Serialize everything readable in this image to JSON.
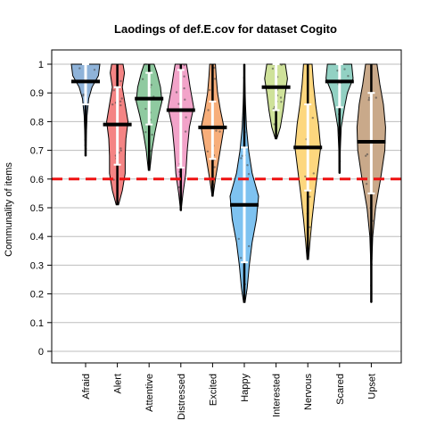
{
  "chart_data": {
    "type": "violin",
    "title": "Laodings of def.E.cov for dataset Cogito",
    "ylabel": "Communality of items",
    "xlabel": "",
    "ylim": [
      0,
      1
    ],
    "yticks": [
      0,
      0.1,
      0.2,
      0.3,
      0.4,
      0.5,
      0.6,
      0.7,
      0.8,
      0.9,
      1
    ],
    "ytick_labels": [
      "0",
      "0.1",
      "0.2",
      "0.3",
      "0.4",
      "0.5",
      "0.6",
      "0.7",
      "0.8",
      "0.9",
      "1"
    ],
    "reference_line": {
      "y": 0.6,
      "color": "#ee1111",
      "style": "dashed"
    },
    "grid": true,
    "categories": [
      "Afraid",
      "Alert",
      "Attentive",
      "Distressed",
      "Excited",
      "Happy",
      "Interested",
      "Nervous",
      "Scared",
      "Upset"
    ],
    "violins": [
      {
        "name": "Afraid",
        "color": "#8fb3d9",
        "min": 0.68,
        "max": 1.0,
        "median": 0.94,
        "q1": 0.86,
        "q3": 1.0,
        "density": [
          [
            0.68,
            0.02
          ],
          [
            0.75,
            0.05
          ],
          [
            0.82,
            0.1
          ],
          [
            0.88,
            0.22
          ],
          [
            0.92,
            0.45
          ],
          [
            0.96,
            0.9
          ],
          [
            1.0,
            1.0
          ]
        ]
      },
      {
        "name": "Alert",
        "color": "#f48484",
        "min": 0.51,
        "max": 1.0,
        "median": 0.79,
        "q1": 0.65,
        "q3": 0.92,
        "density": [
          [
            0.51,
            0.08
          ],
          [
            0.56,
            0.35
          ],
          [
            0.62,
            0.55
          ],
          [
            0.68,
            0.55
          ],
          [
            0.74,
            0.6
          ],
          [
            0.8,
            0.75
          ],
          [
            0.86,
            0.55
          ],
          [
            0.92,
            0.35
          ],
          [
            0.97,
            0.5
          ],
          [
            1.0,
            0.4
          ]
        ]
      },
      {
        "name": "Attentive",
        "color": "#8fcaa0",
        "min": 0.63,
        "max": 1.0,
        "median": 0.88,
        "q1": 0.79,
        "q3": 0.97,
        "density": [
          [
            0.63,
            0.05
          ],
          [
            0.7,
            0.2
          ],
          [
            0.76,
            0.4
          ],
          [
            0.82,
            0.65
          ],
          [
            0.87,
            0.9
          ],
          [
            0.92,
            0.8
          ],
          [
            0.97,
            0.55
          ],
          [
            1.0,
            0.35
          ]
        ]
      },
      {
        "name": "Distressed",
        "color": "#f2a3c9",
        "min": 0.49,
        "max": 1.0,
        "median": 0.84,
        "q1": 0.64,
        "q3": 0.98,
        "density": [
          [
            0.49,
            0.02
          ],
          [
            0.55,
            0.15
          ],
          [
            0.62,
            0.35
          ],
          [
            0.7,
            0.45
          ],
          [
            0.78,
            0.6
          ],
          [
            0.85,
            0.9
          ],
          [
            0.92,
            0.65
          ],
          [
            0.97,
            0.5
          ],
          [
            1.0,
            0.4
          ]
        ]
      },
      {
        "name": "Excited",
        "color": "#f7ae7a",
        "min": 0.54,
        "max": 1.0,
        "median": 0.78,
        "q1": 0.67,
        "q3": 0.87,
        "density": [
          [
            0.54,
            0.03
          ],
          [
            0.6,
            0.2
          ],
          [
            0.66,
            0.4
          ],
          [
            0.72,
            0.6
          ],
          [
            0.78,
            0.8
          ],
          [
            0.84,
            0.55
          ],
          [
            0.9,
            0.35
          ],
          [
            0.96,
            0.25
          ],
          [
            1.0,
            0.2
          ]
        ]
      },
      {
        "name": "Happy",
        "color": "#7ec2f0",
        "min": 0.17,
        "max": 1.0,
        "median": 0.51,
        "q1": 0.31,
        "q3": 0.71,
        "density": [
          [
            0.17,
            0.05
          ],
          [
            0.22,
            0.2
          ],
          [
            0.3,
            0.35
          ],
          [
            0.38,
            0.55
          ],
          [
            0.46,
            0.85
          ],
          [
            0.54,
            1.0
          ],
          [
            0.62,
            0.55
          ],
          [
            0.7,
            0.3
          ],
          [
            0.78,
            0.15
          ],
          [
            0.86,
            0.08
          ],
          [
            0.94,
            0.04
          ],
          [
            1.0,
            0.02
          ]
        ]
      },
      {
        "name": "Interested",
        "color": "#cfe29a",
        "min": 0.74,
        "max": 1.0,
        "median": 0.92,
        "q1": 0.84,
        "q3": 1.0,
        "density": [
          [
            0.74,
            0.05
          ],
          [
            0.78,
            0.3
          ],
          [
            0.84,
            0.5
          ],
          [
            0.9,
            0.65
          ],
          [
            0.95,
            0.8
          ],
          [
            1.0,
            0.65
          ]
        ]
      },
      {
        "name": "Nervous",
        "color": "#fdd77e",
        "min": 0.32,
        "max": 1.0,
        "median": 0.71,
        "q1": 0.56,
        "q3": 0.86,
        "density": [
          [
            0.32,
            0.05
          ],
          [
            0.38,
            0.15
          ],
          [
            0.46,
            0.3
          ],
          [
            0.55,
            0.5
          ],
          [
            0.63,
            0.7
          ],
          [
            0.71,
            0.9
          ],
          [
            0.79,
            0.75
          ],
          [
            0.86,
            0.55
          ],
          [
            0.93,
            0.4
          ],
          [
            1.0,
            0.3
          ]
        ]
      },
      {
        "name": "Scared",
        "color": "#92d1c3",
        "min": 0.62,
        "max": 1.0,
        "median": 0.94,
        "q1": 0.85,
        "q3": 1.0,
        "density": [
          [
            0.62,
            0.02
          ],
          [
            0.7,
            0.05
          ],
          [
            0.78,
            0.12
          ],
          [
            0.85,
            0.35
          ],
          [
            0.9,
            0.55
          ],
          [
            0.95,
            0.95
          ],
          [
            1.0,
            0.85
          ]
        ]
      },
      {
        "name": "Upset",
        "color": "#c9a98a",
        "min": 0.17,
        "max": 1.0,
        "median": 0.73,
        "q1": 0.55,
        "q3": 0.9,
        "density": [
          [
            0.17,
            0.01
          ],
          [
            0.3,
            0.03
          ],
          [
            0.4,
            0.1
          ],
          [
            0.5,
            0.3
          ],
          [
            0.6,
            0.65
          ],
          [
            0.7,
            0.95
          ],
          [
            0.78,
            1.0
          ],
          [
            0.86,
            0.85
          ],
          [
            0.93,
            0.6
          ],
          [
            1.0,
            0.4
          ]
        ]
      }
    ]
  }
}
